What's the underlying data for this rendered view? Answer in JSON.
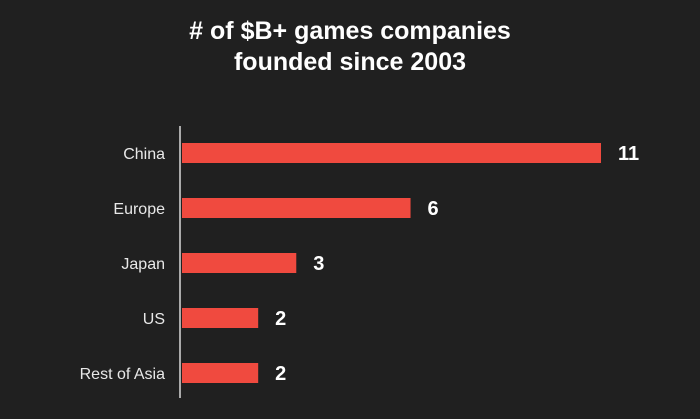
{
  "chart_data": {
    "type": "bar",
    "orientation": "horizontal",
    "title_lines": [
      "# of $B+ games companies",
      "founded since 2003"
    ],
    "categories": [
      "China",
      "Europe",
      "Japan",
      "US",
      "Rest of Asia"
    ],
    "values": [
      11,
      6,
      3,
      2,
      2
    ],
    "value_labels": [
      "11",
      "6",
      "3",
      "2",
      "2"
    ],
    "xlim": [
      0,
      11
    ],
    "grid": false,
    "legend": "none",
    "colors": {
      "background": "#202020",
      "bar": "#f04a3f",
      "axis": "#d8d8d8",
      "text": "#ffffff"
    }
  }
}
